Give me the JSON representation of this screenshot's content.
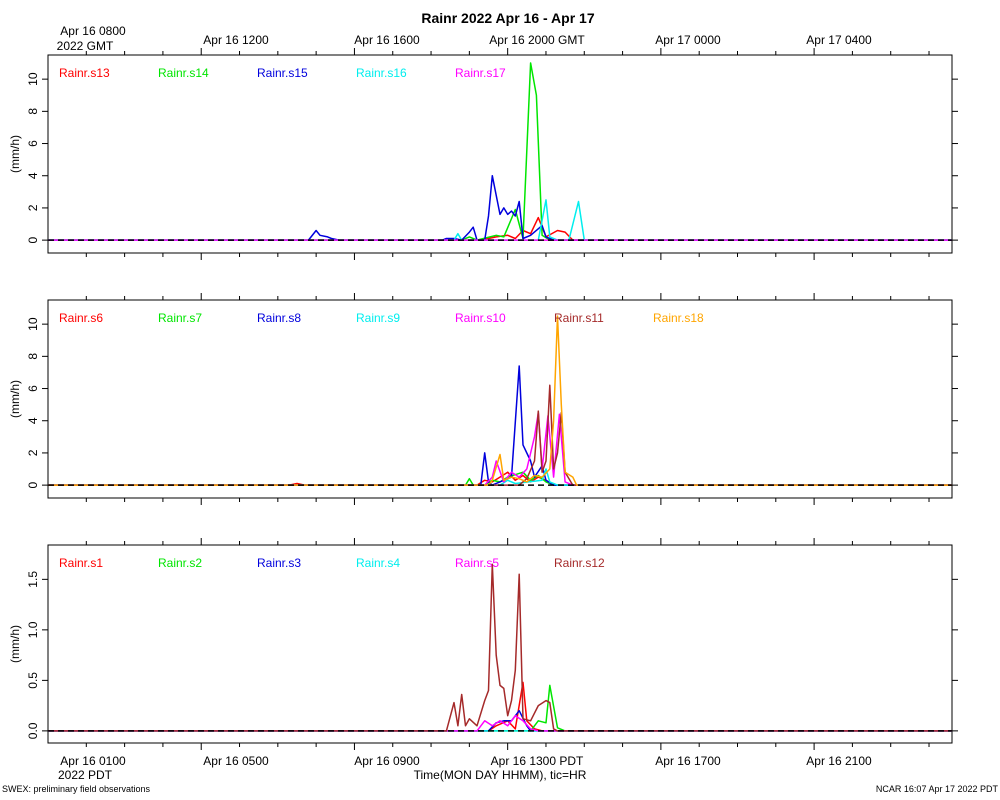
{
  "title": "Rainr 2022 Apr 16 - Apr 17",
  "top_axis": {
    "first_label_line1": "Apr 16 0800",
    "first_label_line2": "2022 GMT",
    "labels": [
      "Apr 16 1200",
      "Apr 16 1600",
      "Apr 16 2000 GMT",
      "Apr 17 0000",
      "Apr 17 0400"
    ]
  },
  "bottom_axis": {
    "labels": [
      "Apr 16 0100",
      "Apr 16 0500",
      "Apr 16 0900",
      "Apr 16 1300 PDT",
      "Apr 16 1700",
      "Apr 16 2100"
    ],
    "year_label": "2022 PDT",
    "xlabel": "Time(MON DAY HHMM), tic=HR"
  },
  "footer": {
    "left": "SWEX: preliminary field observations",
    "right": "NCAR 16:07 Apr 17 2022 PDT"
  },
  "colors": {
    "red": "#ff0000",
    "green": "#00e600",
    "blue": "#0000dd",
    "cyan": "#00eeee",
    "magenta": "#ff00ff",
    "brown": "#a52a2a",
    "orange": "#ffa500",
    "zero_line": "#000000"
  },
  "chart_data": [
    {
      "type": "line",
      "ylabel": "(mm/h)",
      "ylim": [
        -0.8,
        11.5
      ],
      "yticks": [
        0,
        2,
        4,
        6,
        8,
        10
      ],
      "ytick_labels": [
        "0",
        "2",
        "4",
        "6",
        "8",
        "10"
      ],
      "x_unit": "hours PDT, Apr 16",
      "xlim": [
        0,
        23.6
      ],
      "series": [
        {
          "name": "Rainr.s13",
          "color": "red",
          "points": [
            [
              0,
              0
            ],
            [
              11.3,
              0
            ],
            [
              11.7,
              0.2
            ],
            [
              12.0,
              0.3
            ],
            [
              12.2,
              0.1
            ],
            [
              12.4,
              0.6
            ],
            [
              12.6,
              0.4
            ],
            [
              12.8,
              1.4
            ],
            [
              13.0,
              0.2
            ],
            [
              13.3,
              0.6
            ],
            [
              13.5,
              0.5
            ],
            [
              13.7,
              0
            ],
            [
              23.6,
              0
            ]
          ]
        },
        {
          "name": "Rainr.s14",
          "color": "green",
          "points": [
            [
              0,
              0
            ],
            [
              10.8,
              0
            ],
            [
              11.0,
              0.2
            ],
            [
              11.2,
              0
            ],
            [
              11.7,
              0.3
            ],
            [
              11.9,
              0.2
            ],
            [
              12.2,
              1.9
            ],
            [
              12.4,
              0.1
            ],
            [
              12.6,
              11.0
            ],
            [
              12.75,
              9.0
            ],
            [
              12.9,
              0.3
            ],
            [
              13.1,
              0
            ],
            [
              23.6,
              0
            ]
          ]
        },
        {
          "name": "Rainr.s15",
          "color": "blue",
          "points": [
            [
              0,
              0
            ],
            [
              6.8,
              0
            ],
            [
              7.0,
              0.6
            ],
            [
              7.1,
              0.3
            ],
            [
              7.3,
              0.2
            ],
            [
              7.4,
              0.1
            ],
            [
              7.6,
              0
            ],
            [
              10.3,
              0
            ],
            [
              10.4,
              0.1
            ],
            [
              10.6,
              0.1
            ],
            [
              10.8,
              0
            ],
            [
              11.0,
              0.5
            ],
            [
              11.1,
              0.8
            ],
            [
              11.2,
              0
            ],
            [
              11.4,
              0
            ],
            [
              11.5,
              1.5
            ],
            [
              11.6,
              4.0
            ],
            [
              11.8,
              1.6
            ],
            [
              11.9,
              2.0
            ],
            [
              12.0,
              1.6
            ],
            [
              12.1,
              1.8
            ],
            [
              12.2,
              1.5
            ],
            [
              12.3,
              2.4
            ],
            [
              12.4,
              0.1
            ],
            [
              12.6,
              0.3
            ],
            [
              12.9,
              0.9
            ],
            [
              13.0,
              0.2
            ],
            [
              13.2,
              0
            ],
            [
              23.6,
              0
            ]
          ]
        },
        {
          "name": "Rainr.s16",
          "color": "cyan",
          "points": [
            [
              0,
              0
            ],
            [
              10.6,
              0
            ],
            [
              10.7,
              0.4
            ],
            [
              10.8,
              0
            ],
            [
              12.8,
              0
            ],
            [
              13.0,
              2.5
            ],
            [
              13.1,
              0.2
            ],
            [
              13.3,
              0
            ],
            [
              13.6,
              0
            ],
            [
              13.85,
              2.4
            ],
            [
              14.0,
              0
            ],
            [
              23.6,
              0
            ]
          ]
        },
        {
          "name": "Rainr.s17",
          "color": "magenta",
          "points": [
            [
              0,
              0
            ],
            [
              23.6,
              0
            ]
          ]
        }
      ]
    },
    {
      "type": "line",
      "ylabel": "(mm/h)",
      "ylim": [
        -0.8,
        11.5
      ],
      "yticks": [
        0,
        2,
        4,
        6,
        8,
        10
      ],
      "ytick_labels": [
        "0",
        "2",
        "4",
        "6",
        "8",
        "10"
      ],
      "x_unit": "hours PDT, Apr 16",
      "xlim": [
        0,
        23.6
      ],
      "series": [
        {
          "name": "Rainr.s6",
          "color": "red",
          "points": [
            [
              0,
              0
            ],
            [
              6.3,
              0
            ],
            [
              6.5,
              0.1
            ],
            [
              6.7,
              0
            ],
            [
              11.2,
              0
            ],
            [
              11.4,
              0.3
            ],
            [
              11.6,
              0.2
            ],
            [
              11.8,
              0.5
            ],
            [
              12.0,
              0.8
            ],
            [
              12.2,
              0.3
            ],
            [
              12.4,
              0.6
            ],
            [
              12.6,
              0.2
            ],
            [
              12.8,
              0.5
            ],
            [
              13.0,
              0.3
            ],
            [
              13.2,
              0
            ],
            [
              23.6,
              0
            ]
          ]
        },
        {
          "name": "Rainr.s7",
          "color": "green",
          "points": [
            [
              0,
              0
            ],
            [
              10.9,
              0
            ],
            [
              11.0,
              0.4
            ],
            [
              11.1,
              0
            ],
            [
              11.4,
              0
            ],
            [
              11.6,
              0.3
            ],
            [
              11.8,
              0.2
            ],
            [
              12.0,
              0.5
            ],
            [
              12.4,
              0.8
            ],
            [
              12.6,
              0.3
            ],
            [
              12.8,
              0.6
            ],
            [
              13.0,
              0.2
            ],
            [
              13.2,
              0
            ],
            [
              23.6,
              0
            ]
          ]
        },
        {
          "name": "Rainr.s8",
          "color": "blue",
          "points": [
            [
              0,
              0
            ],
            [
              11.3,
              0
            ],
            [
              11.4,
              2.0
            ],
            [
              11.5,
              0.2
            ],
            [
              11.6,
              0
            ],
            [
              11.9,
              0.3
            ],
            [
              12.1,
              0.5
            ],
            [
              12.3,
              7.4
            ],
            [
              12.4,
              2.5
            ],
            [
              12.6,
              1.5
            ],
            [
              12.7,
              0.5
            ],
            [
              12.9,
              1.2
            ],
            [
              13.0,
              0.3
            ],
            [
              13.2,
              0
            ],
            [
              23.6,
              0
            ]
          ]
        },
        {
          "name": "Rainr.s9",
          "color": "cyan",
          "points": [
            [
              0,
              0
            ],
            [
              11.8,
              0
            ],
            [
              12.0,
              0.3
            ],
            [
              12.2,
              0.1
            ],
            [
              12.9,
              0.3
            ],
            [
              13.0,
              1.0
            ],
            [
              13.1,
              0.2
            ],
            [
              13.3,
              0
            ],
            [
              23.6,
              0
            ]
          ]
        },
        {
          "name": "Rainr.s10",
          "color": "magenta",
          "points": [
            [
              0,
              0
            ],
            [
              11.4,
              0
            ],
            [
              11.6,
              0.5
            ],
            [
              11.7,
              1.5
            ],
            [
              11.9,
              0.2
            ],
            [
              12.1,
              0.8
            ],
            [
              12.3,
              0.5
            ],
            [
              12.5,
              1.0
            ],
            [
              12.7,
              3.0
            ],
            [
              12.8,
              4.5
            ],
            [
              12.9,
              1.0
            ],
            [
              13.05,
              4.3
            ],
            [
              13.2,
              0.5
            ],
            [
              13.35,
              4.4
            ],
            [
              13.5,
              0.2
            ],
            [
              13.7,
              0
            ],
            [
              23.6,
              0
            ]
          ]
        },
        {
          "name": "Rainr.s11",
          "color": "brown",
          "points": [
            [
              0,
              0
            ],
            [
              12.3,
              0
            ],
            [
              12.5,
              0.4
            ],
            [
              12.7,
              1.5
            ],
            [
              12.8,
              4.6
            ],
            [
              12.9,
              0.8
            ],
            [
              13.0,
              1.5
            ],
            [
              13.1,
              6.2
            ],
            [
              13.2,
              1.0
            ],
            [
              13.3,
              2.0
            ],
            [
              13.4,
              4.5
            ],
            [
              13.5,
              0.8
            ],
            [
              13.7,
              0
            ],
            [
              23.6,
              0
            ]
          ]
        },
        {
          "name": "Rainr.s18",
          "color": "orange",
          "points": [
            [
              0,
              0
            ],
            [
              11.5,
              0
            ],
            [
              11.6,
              0.3
            ],
            [
              11.8,
              1.9
            ],
            [
              11.9,
              0.3
            ],
            [
              12.1,
              0.5
            ],
            [
              12.3,
              0.4
            ],
            [
              12.5,
              0.2
            ],
            [
              12.7,
              0.6
            ],
            [
              12.9,
              0.5
            ],
            [
              13.1,
              1.0
            ],
            [
              13.2,
              4.0
            ],
            [
              13.3,
              10.5
            ],
            [
              13.4,
              5.0
            ],
            [
              13.5,
              0.8
            ],
            [
              13.7,
              0.5
            ],
            [
              13.8,
              0
            ],
            [
              23.6,
              0
            ]
          ]
        }
      ]
    },
    {
      "type": "line",
      "ylabel": "(mm/h)",
      "ylim": [
        -0.12,
        1.84
      ],
      "yticks": [
        0.0,
        0.5,
        1.0,
        1.5
      ],
      "ytick_labels": [
        "0.0",
        "0.5",
        "1.0",
        "1.5"
      ],
      "x_unit": "hours PDT, Apr 16",
      "xlim": [
        0,
        23.6
      ],
      "series": [
        {
          "name": "Rainr.s1",
          "color": "red",
          "points": [
            [
              0,
              0
            ],
            [
              11.5,
              0
            ],
            [
              11.7,
              0.05
            ],
            [
              12.0,
              0.1
            ],
            [
              12.2,
              0.02
            ],
            [
              12.4,
              0.48
            ],
            [
              12.5,
              0.1
            ],
            [
              12.7,
              0.02
            ],
            [
              12.9,
              0
            ],
            [
              23.6,
              0
            ]
          ]
        },
        {
          "name": "Rainr.s2",
          "color": "green",
          "points": [
            [
              0,
              0
            ],
            [
              12.6,
              0
            ],
            [
              12.8,
              0.1
            ],
            [
              13.0,
              0.08
            ],
            [
              13.1,
              0.45
            ],
            [
              13.3,
              0.03
            ],
            [
              13.5,
              0
            ],
            [
              23.6,
              0
            ]
          ]
        },
        {
          "name": "Rainr.s3",
          "color": "blue",
          "points": [
            [
              0,
              0
            ],
            [
              11.5,
              0
            ],
            [
              11.7,
              0.08
            ],
            [
              11.9,
              0.1
            ],
            [
              12.1,
              0.1
            ],
            [
              12.3,
              0.2
            ],
            [
              12.5,
              0.05
            ],
            [
              12.6,
              0
            ],
            [
              23.6,
              0
            ]
          ]
        },
        {
          "name": "Rainr.s4",
          "color": "cyan",
          "points": [
            [
              0,
              0
            ],
            [
              23.6,
              0
            ]
          ]
        },
        {
          "name": "Rainr.s5",
          "color": "magenta",
          "points": [
            [
              0,
              0
            ],
            [
              11.2,
              0
            ],
            [
              11.4,
              0.1
            ],
            [
              11.6,
              0.05
            ],
            [
              11.8,
              0.1
            ],
            [
              12.0,
              0.05
            ],
            [
              12.2,
              0.15
            ],
            [
              12.4,
              0.1
            ],
            [
              12.6,
              0.02
            ],
            [
              12.8,
              0
            ],
            [
              23.6,
              0
            ]
          ]
        },
        {
          "name": "Rainr.s12",
          "color": "brown",
          "points": [
            [
              0,
              0
            ],
            [
              10.4,
              0
            ],
            [
              10.6,
              0.28
            ],
            [
              10.7,
              0.05
            ],
            [
              10.8,
              0.36
            ],
            [
              10.9,
              0.05
            ],
            [
              11.0,
              0.12
            ],
            [
              11.2,
              0.05
            ],
            [
              11.4,
              0.3
            ],
            [
              11.5,
              0.4
            ],
            [
              11.6,
              1.65
            ],
            [
              11.7,
              0.75
            ],
            [
              11.8,
              0.45
            ],
            [
              11.9,
              0.42
            ],
            [
              12.0,
              0.15
            ],
            [
              12.1,
              0.3
            ],
            [
              12.2,
              0.6
            ],
            [
              12.3,
              1.55
            ],
            [
              12.4,
              0.12
            ],
            [
              12.6,
              0.1
            ],
            [
              12.8,
              0.25
            ],
            [
              13.0,
              0.3
            ],
            [
              13.1,
              0.28
            ],
            [
              13.2,
              0.02
            ],
            [
              13.3,
              0
            ],
            [
              23.6,
              0
            ]
          ]
        }
      ]
    }
  ]
}
